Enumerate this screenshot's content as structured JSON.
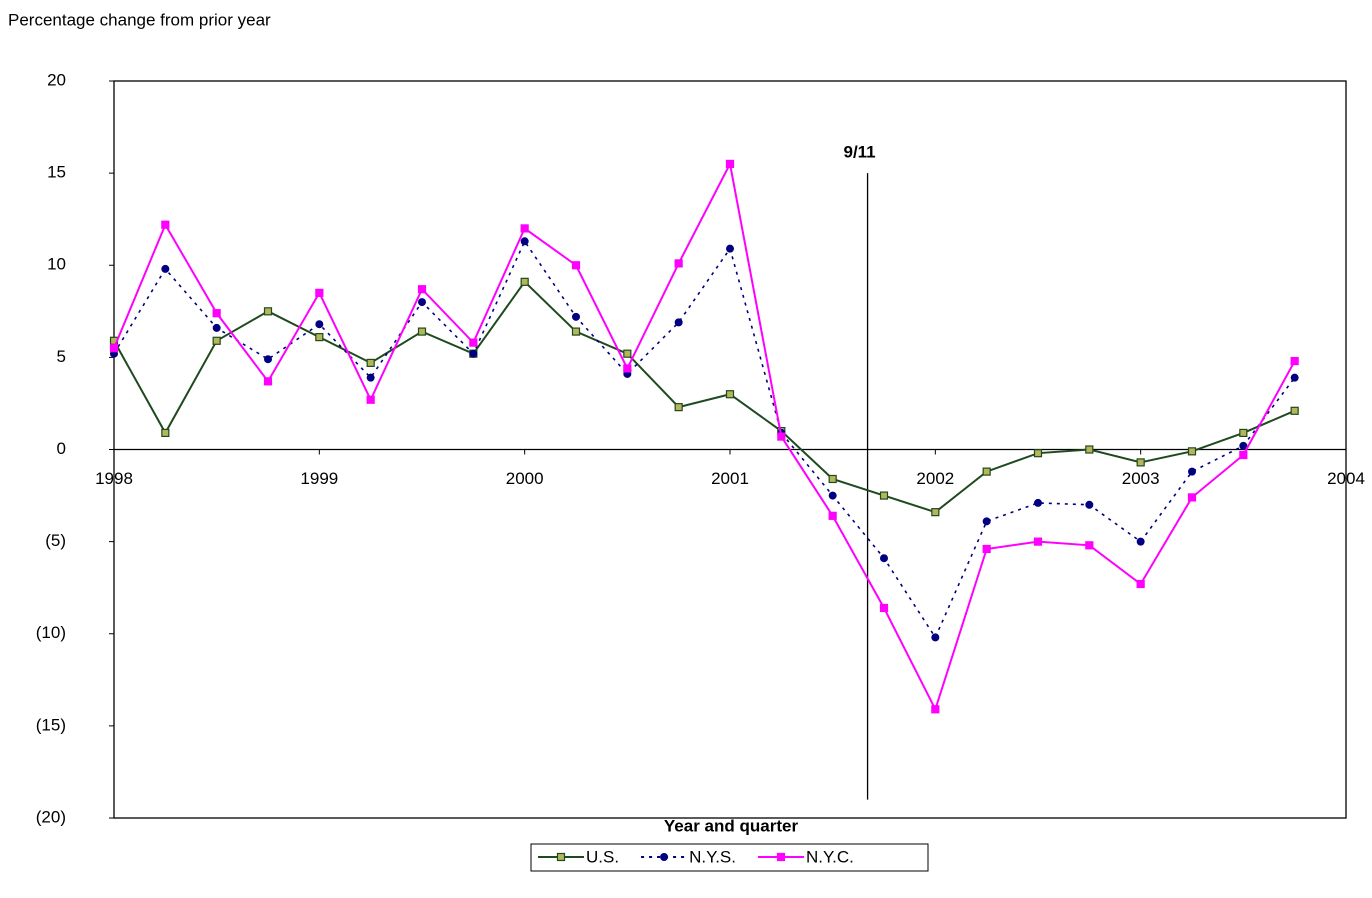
{
  "chart_data": {
    "type": "line",
    "y_label": "Percentage change from prior year",
    "x_label": "Year and quarter",
    "x": [
      1998,
      1998.25,
      1998.5,
      1998.75,
      1999,
      1999.25,
      1999.5,
      1999.75,
      2000,
      2000.25,
      2000.5,
      2000.75,
      2001,
      2001.25,
      2001.5,
      2001.75,
      2002,
      2002.25,
      2002.5,
      2002.75,
      2003,
      2003.25,
      2003.5,
      2003.75
    ],
    "xlim": [
      1998,
      2004
    ],
    "xticks": [
      1998,
      1999,
      2000,
      2001,
      2002,
      2003,
      2004
    ],
    "ylim": [
      -20,
      20
    ],
    "yticks": [
      {
        "value": -20,
        "label": "(20)"
      },
      {
        "value": -15,
        "label": "(15)"
      },
      {
        "value": -10,
        "label": "(10)"
      },
      {
        "value": -5,
        "label": "(5)"
      },
      0,
      5,
      10,
      15,
      20
    ],
    "series": [
      {
        "name": "U.S.",
        "color": "#1f4a1f",
        "marker": "square",
        "marker_color": "#b5b55a",
        "dash": "solid",
        "values": [
          5.9,
          0.9,
          5.9,
          7.5,
          6.1,
          4.7,
          6.4,
          5.2,
          9.1,
          6.4,
          5.2,
          2.3,
          3.0,
          1.0,
          -1.6,
          -2.5,
          -3.4,
          -1.2,
          -0.2,
          0.0,
          -0.7,
          -0.1,
          0.9,
          2.1
        ]
      },
      {
        "name": "N.Y.S.",
        "color": "#000080",
        "marker": "circle",
        "marker_color": "#000080",
        "dash": "dotted",
        "values": [
          5.2,
          9.8,
          6.6,
          4.9,
          6.8,
          3.9,
          8.0,
          5.2,
          11.3,
          7.2,
          4.1,
          6.9,
          10.9,
          0.9,
          -2.5,
          -5.9,
          -10.2,
          -3.9,
          -2.9,
          -3.0,
          -5.0,
          -1.2,
          0.2,
          3.9
        ]
      },
      {
        "name": "N.Y.C.",
        "color": "#ff00ff",
        "marker": "square",
        "marker_color": "#ff00ff",
        "dash": "solid",
        "values": [
          5.5,
          12.2,
          7.4,
          3.7,
          8.5,
          2.7,
          8.7,
          5.8,
          12.0,
          10.0,
          4.4,
          10.1,
          15.5,
          0.7,
          -3.6,
          -8.6,
          -14.1,
          -5.4,
          -5.0,
          -5.2,
          -7.3,
          -2.6,
          -0.3,
          4.8
        ]
      }
    ],
    "annotation": {
      "label": "9/11",
      "x": 2001.67,
      "ymin": -19,
      "ymax": 15
    },
    "legend": "bottom"
  }
}
